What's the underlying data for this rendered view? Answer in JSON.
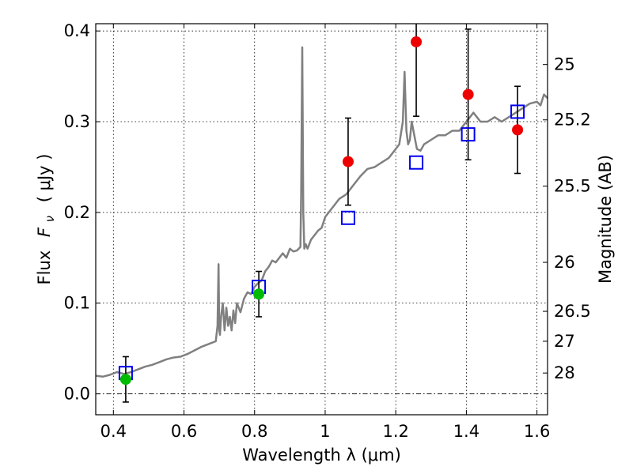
{
  "chart_data": {
    "type": "line",
    "xlabel": "Wavelength  λ (μm)",
    "ylabel": {
      "prefix": "Flux",
      "symbol": "F",
      "subscript": "ν",
      "units": "( μJy )"
    },
    "y2label": "Magnitude (AB)",
    "xlim": [
      0.35,
      1.63
    ],
    "ylim": [
      -0.023,
      0.408
    ],
    "x_ticks": [
      0.4,
      0.6,
      0.8,
      1.0,
      1.2,
      1.4,
      1.6
    ],
    "x_tick_labels": [
      "0.4",
      "0.6",
      "0.8",
      "1",
      "1.2",
      "1.4",
      "1.6"
    ],
    "y_ticks": [
      0.0,
      0.1,
      0.2,
      0.3,
      0.4
    ],
    "y_tick_labels": [
      "0.0",
      "0.1",
      "0.2",
      "0.3",
      "0.4"
    ],
    "mag_ticks": [
      {
        "label": "25",
        "flux": 0.363
      },
      {
        "label": "25.2",
        "flux": 0.302
      },
      {
        "label": "25.5",
        "flux": 0.229
      },
      {
        "label": "26",
        "flux": 0.145
      },
      {
        "label": "26.5",
        "flux": 0.091
      },
      {
        "label": "27",
        "flux": 0.058
      },
      {
        "label": "28",
        "flux": 0.023
      }
    ],
    "grid": true,
    "reference_line": {
      "y": 0.0,
      "style": "dash-dot"
    },
    "colors": {
      "spectrum": "#808080",
      "model_box": "#0000ee",
      "detection_green": "#00bb00",
      "detection_red": "#ee0000",
      "errorbar": "#000000"
    },
    "series": [
      {
        "kind": "model_spectrum",
        "x": [
          0.35,
          0.37,
          0.39,
          0.41,
          0.43,
          0.45,
          0.47,
          0.49,
          0.51,
          0.53,
          0.55,
          0.57,
          0.59,
          0.61,
          0.63,
          0.65,
          0.67,
          0.69,
          0.695,
          0.698,
          0.7,
          0.702,
          0.705,
          0.71,
          0.715,
          0.72,
          0.725,
          0.73,
          0.735,
          0.74,
          0.745,
          0.75,
          0.76,
          0.77,
          0.78,
          0.79,
          0.8,
          0.81,
          0.82,
          0.83,
          0.84,
          0.85,
          0.86,
          0.87,
          0.88,
          0.89,
          0.9,
          0.91,
          0.92,
          0.93,
          0.932,
          0.935,
          0.938,
          0.941,
          0.945,
          0.95,
          0.96,
          0.97,
          0.98,
          0.99,
          1.0,
          1.02,
          1.04,
          1.06,
          1.08,
          1.1,
          1.12,
          1.14,
          1.16,
          1.18,
          1.2,
          1.21,
          1.22,
          1.225,
          1.23,
          1.235,
          1.24,
          1.245,
          1.25,
          1.26,
          1.27,
          1.28,
          1.3,
          1.32,
          1.34,
          1.36,
          1.38,
          1.4,
          1.41,
          1.42,
          1.43,
          1.44,
          1.46,
          1.48,
          1.5,
          1.52,
          1.54,
          1.56,
          1.58,
          1.6,
          1.61,
          1.62,
          1.63
        ],
        "y": [
          0.02,
          0.019,
          0.021,
          0.024,
          0.022,
          0.024,
          0.027,
          0.03,
          0.032,
          0.035,
          0.038,
          0.04,
          0.041,
          0.044,
          0.048,
          0.052,
          0.055,
          0.058,
          0.075,
          0.143,
          0.07,
          0.065,
          0.085,
          0.1,
          0.07,
          0.095,
          0.075,
          0.085,
          0.07,
          0.092,
          0.078,
          0.1,
          0.09,
          0.105,
          0.112,
          0.11,
          0.118,
          0.122,
          0.125,
          0.135,
          0.14,
          0.147,
          0.145,
          0.15,
          0.155,
          0.15,
          0.16,
          0.157,
          0.158,
          0.162,
          0.22,
          0.382,
          0.2,
          0.16,
          0.165,
          0.16,
          0.17,
          0.175,
          0.18,
          0.183,
          0.195,
          0.205,
          0.215,
          0.22,
          0.23,
          0.24,
          0.248,
          0.25,
          0.255,
          0.26,
          0.27,
          0.275,
          0.3,
          0.355,
          0.29,
          0.275,
          0.28,
          0.3,
          0.29,
          0.27,
          0.268,
          0.275,
          0.28,
          0.285,
          0.285,
          0.29,
          0.29,
          0.3,
          0.305,
          0.31,
          0.305,
          0.3,
          0.3,
          0.305,
          0.3,
          0.305,
          0.31,
          0.315,
          0.32,
          0.322,
          0.318,
          0.33,
          0.326
        ]
      },
      {
        "kind": "model_photometry",
        "marker": "open-square",
        "x": [
          0.435,
          0.812,
          1.065,
          1.258,
          1.405,
          1.545
        ],
        "y": [
          0.023,
          0.118,
          0.194,
          0.255,
          0.286,
          0.311
        ]
      },
      {
        "kind": "observed_green",
        "marker": "filled-circle",
        "x": [
          0.435,
          0.812
        ],
        "y": [
          0.016,
          0.11
        ],
        "err": [
          0.025,
          0.025
        ]
      },
      {
        "kind": "observed_red",
        "marker": "filled-circle",
        "x": [
          1.065,
          1.258,
          1.405,
          1.545
        ],
        "y": [
          0.256,
          0.388,
          0.33,
          0.291
        ],
        "err": [
          0.048,
          0.082,
          0.072,
          0.048
        ]
      }
    ]
  }
}
